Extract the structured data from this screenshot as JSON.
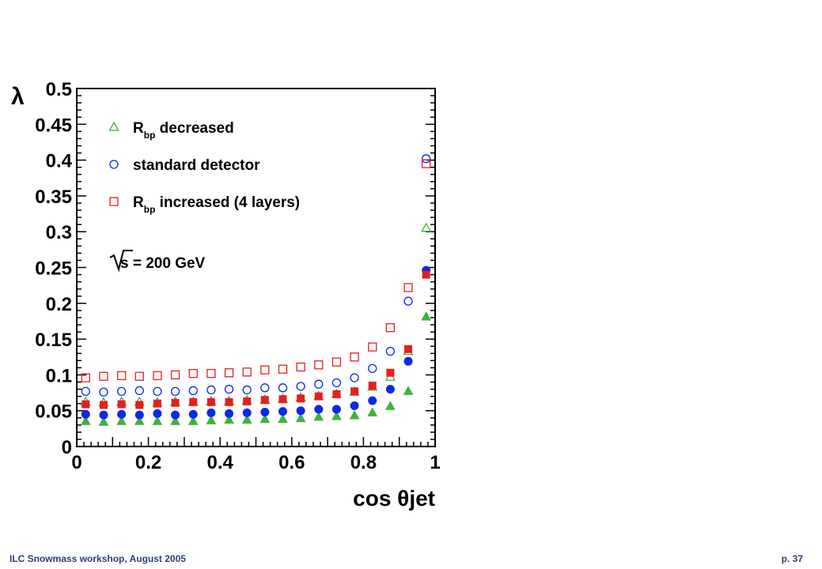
{
  "footer": {
    "left": "ILC Snowmass workshop, August 2005",
    "right": "p. 37"
  },
  "annotation": "s = 200 GeV",
  "colors": {
    "green": "#3cb33c",
    "blue": "#0a28e6",
    "red": "#e61e1e"
  },
  "chart_data": {
    "type": "scatter",
    "xlabel": "cos θjet",
    "ylabel": "λ",
    "xlim": [
      0,
      1
    ],
    "ylim": [
      0,
      0.5
    ],
    "x_ticks": [
      "0",
      "0.2",
      "0.4",
      "0.6",
      "0.8",
      "1"
    ],
    "y_ticks": [
      "0",
      "0.05",
      "0.1",
      "0.15",
      "0.2",
      "0.25",
      "0.3",
      "0.35",
      "0.4",
      "0.45",
      "0.5"
    ],
    "x": [
      0.025,
      0.075,
      0.125,
      0.175,
      0.225,
      0.275,
      0.325,
      0.375,
      0.425,
      0.475,
      0.525,
      0.575,
      0.625,
      0.675,
      0.725,
      0.775,
      0.825,
      0.875,
      0.925,
      0.975
    ],
    "legend": [
      {
        "name": "R",
        "sub": "bp",
        "suffix": " decreased",
        "marker": "triangle",
        "color": "#3cb33c"
      },
      {
        "name": "standard detector",
        "sub": "",
        "suffix": "",
        "marker": "circle",
        "color": "#0a28e6"
      },
      {
        "name": "R",
        "sub": "bp",
        "suffix": " increased (4 layers)",
        "marker": "square",
        "color": "#e61e1e"
      }
    ],
    "series": [
      {
        "marker": "triangle",
        "fill": "open",
        "color": "#3cb33c",
        "values": [
          0.062,
          0.061,
          0.062,
          0.062,
          0.061,
          0.062,
          0.062,
          0.063,
          0.063,
          0.064,
          0.065,
          0.066,
          0.068,
          0.07,
          0.073,
          0.076,
          0.083,
          0.097,
          0.133,
          0.305
        ]
      },
      {
        "marker": "triangle",
        "fill": "solid",
        "color": "#3cb33c",
        "values": [
          0.035,
          0.034,
          0.035,
          0.035,
          0.035,
          0.035,
          0.035,
          0.036,
          0.037,
          0.037,
          0.038,
          0.038,
          0.039,
          0.041,
          0.042,
          0.043,
          0.047,
          0.056,
          0.077,
          0.181
        ]
      },
      {
        "marker": "circle",
        "fill": "open",
        "color": "#0a28e6",
        "values": [
          0.077,
          0.076,
          0.077,
          0.078,
          0.077,
          0.077,
          0.078,
          0.079,
          0.08,
          0.079,
          0.082,
          0.082,
          0.084,
          0.087,
          0.089,
          0.096,
          0.109,
          0.133,
          0.203,
          0.402
        ]
      },
      {
        "marker": "circle",
        "fill": "solid",
        "color": "#0a28e6",
        "values": [
          0.045,
          0.044,
          0.045,
          0.044,
          0.046,
          0.044,
          0.045,
          0.047,
          0.046,
          0.047,
          0.048,
          0.049,
          0.05,
          0.052,
          0.052,
          0.057,
          0.064,
          0.08,
          0.119,
          0.246
        ]
      },
      {
        "marker": "square",
        "fill": "open",
        "color": "#e61e1e",
        "values": [
          0.096,
          0.098,
          0.099,
          0.098,
          0.099,
          0.1,
          0.102,
          0.102,
          0.103,
          0.104,
          0.107,
          0.108,
          0.111,
          0.114,
          0.118,
          0.125,
          0.139,
          0.166,
          0.222,
          0.395
        ]
      },
      {
        "marker": "square",
        "fill": "solid",
        "color": "#e61e1e",
        "values": [
          0.059,
          0.058,
          0.059,
          0.058,
          0.06,
          0.061,
          0.062,
          0.062,
          0.062,
          0.063,
          0.065,
          0.066,
          0.067,
          0.07,
          0.073,
          0.077,
          0.085,
          0.103,
          0.136,
          0.24
        ]
      }
    ]
  }
}
